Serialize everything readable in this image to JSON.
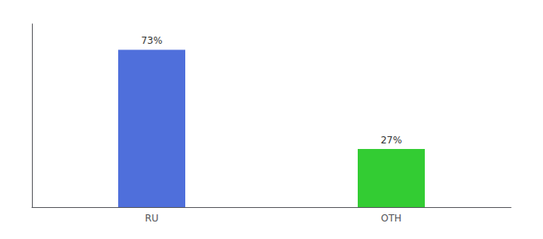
{
  "chart_data": {
    "type": "bar",
    "categories": [
      "RU",
      "OTH"
    ],
    "values": [
      73,
      27
    ],
    "value_labels": [
      "73%",
      "27%"
    ],
    "colors": [
      "#4f6fdb",
      "#33cc33"
    ],
    "data_labels": true,
    "ylim": [
      0,
      85
    ],
    "yticks": [],
    "tick_labels": "x",
    "grid": false
  }
}
